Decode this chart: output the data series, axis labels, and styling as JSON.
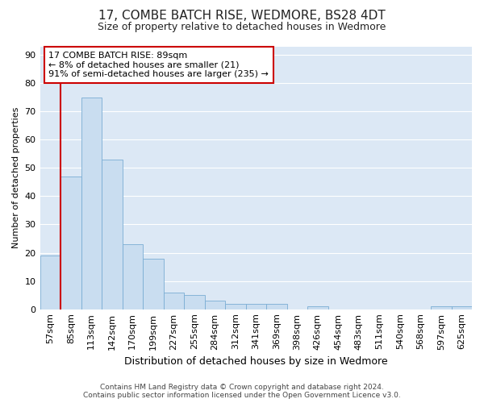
{
  "title": "17, COMBE BATCH RISE, WEDMORE, BS28 4DT",
  "subtitle": "Size of property relative to detached houses in Wedmore",
  "xlabel": "Distribution of detached houses by size in Wedmore",
  "ylabel": "Number of detached properties",
  "bar_color": "#c9ddf0",
  "bar_edge_color": "#7aadd4",
  "categories": [
    "57sqm",
    "85sqm",
    "113sqm",
    "142sqm",
    "170sqm",
    "199sqm",
    "227sqm",
    "255sqm",
    "284sqm",
    "312sqm",
    "341sqm",
    "369sqm",
    "398sqm",
    "426sqm",
    "454sqm",
    "483sqm",
    "511sqm",
    "540sqm",
    "568sqm",
    "597sqm",
    "625sqm"
  ],
  "values": [
    19,
    47,
    75,
    53,
    23,
    18,
    6,
    5,
    3,
    2,
    2,
    2,
    0,
    1,
    0,
    0,
    0,
    0,
    0,
    1,
    1
  ],
  "ylim": [
    0,
    93
  ],
  "yticks": [
    0,
    10,
    20,
    30,
    40,
    50,
    60,
    70,
    80,
    90
  ],
  "vline_x_idx": 1,
  "vline_color": "#cc0000",
  "annotation_text": "17 COMBE BATCH RISE: 89sqm\n← 8% of detached houses are smaller (21)\n91% of semi-detached houses are larger (235) →",
  "annotation_box_color": "#ffffff",
  "annotation_box_edge": "#cc0000",
  "footer_line1": "Contains HM Land Registry data © Crown copyright and database right 2024.",
  "footer_line2": "Contains public sector information licensed under the Open Government Licence v3.0.",
  "fig_bg_color": "#ffffff",
  "plot_bg_color": "#dce8f5",
  "grid_color": "#ffffff",
  "title_fontsize": 11,
  "subtitle_fontsize": 9,
  "ylabel_fontsize": 8,
  "xlabel_fontsize": 9,
  "annotation_fontsize": 8,
  "footer_fontsize": 6.5,
  "tick_fontsize": 8
}
